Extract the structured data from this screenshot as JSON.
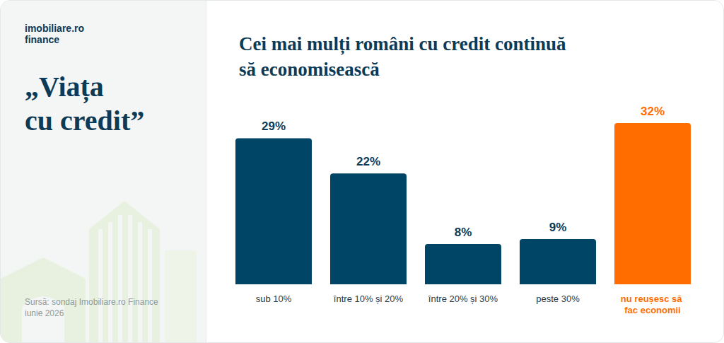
{
  "page": {
    "logo": [
      "imobiliare.ro",
      "finance"
    ],
    "heading": "„Viața cu credit”",
    "source": [
      "Sursă: sondaj Imobiliare.ro Finance",
      "iunie 2026"
    ]
  },
  "chart_data": {
    "type": "bar",
    "title": "Cei mai mulți români cu credit continuă să economisească",
    "categories": [
      "sub 10%",
      "între 10% și 20%",
      "între 20% și 30%",
      "peste 30%",
      "nu reușesc să fac economii"
    ],
    "values": [
      29,
      22,
      8,
      9,
      32
    ],
    "value_labels": [
      "29%",
      "22%",
      "8%",
      "9%",
      "32%"
    ],
    "colors": [
      "#004466",
      "#004466",
      "#004466",
      "#004466",
      "#ff6d00"
    ],
    "ylim": [
      0,
      32
    ],
    "data_labels": true,
    "tick_labels": "x",
    "grid": false
  }
}
